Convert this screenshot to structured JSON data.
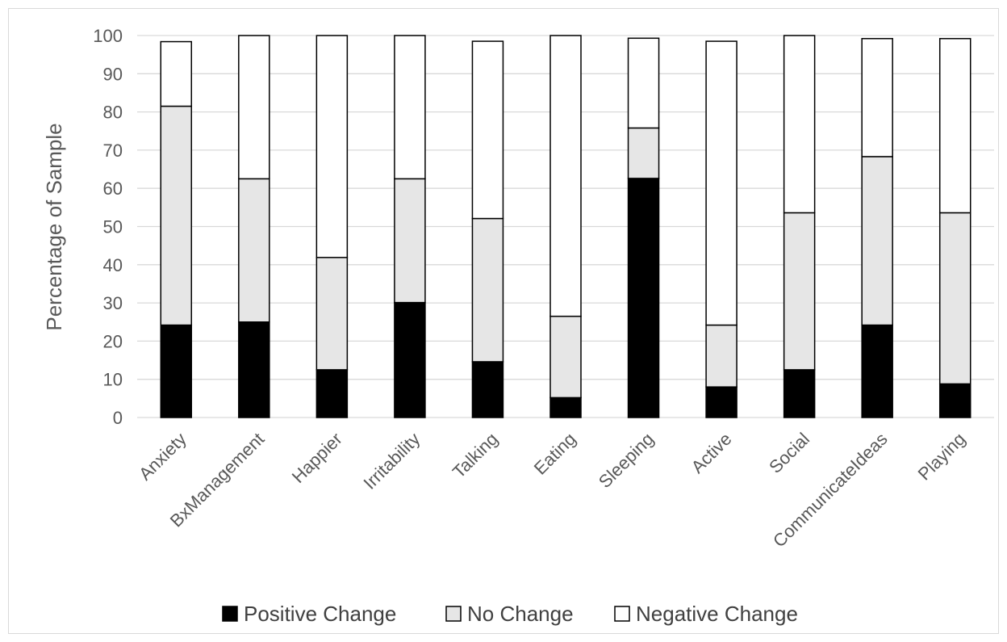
{
  "chart_data": {
    "type": "bar",
    "stacked": true,
    "categories": [
      "Anxiety",
      "BxManagement",
      "Happier",
      "Irritability",
      "Talking",
      "Eating",
      "Sleeping",
      "Active",
      "Social",
      "CommunicateIdeas",
      "Playing"
    ],
    "series": [
      {
        "name": "Positive Change",
        "color": "#000000",
        "values": [
          24.2,
          25.0,
          12.5,
          30.1,
          14.6,
          5.2,
          62.6,
          8.0,
          12.5,
          24.2,
          8.8
        ]
      },
      {
        "name": "No Change",
        "color": "#e6e6e6",
        "values": [
          57.3,
          37.5,
          29.4,
          32.4,
          37.5,
          21.3,
          13.2,
          16.2,
          41.1,
          44.1,
          44.8
        ]
      },
      {
        "name": "Negative Change",
        "color": "#ffffff",
        "values": [
          16.9,
          37.5,
          58.1,
          37.5,
          46.4,
          73.5,
          23.5,
          74.3,
          46.4,
          30.9,
          45.6
        ]
      }
    ],
    "title": "",
    "xlabel": "",
    "ylabel": "Percentage of Sample",
    "ylim": [
      0,
      100
    ],
    "yticks": [
      0,
      10,
      20,
      30,
      40,
      50,
      60,
      70,
      80,
      90,
      100
    ],
    "grid": true,
    "legend_position": "bottom"
  }
}
